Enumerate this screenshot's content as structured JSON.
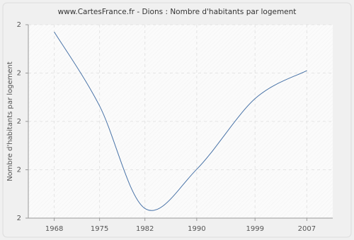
{
  "chart_data": {
    "type": "line",
    "title": "www.CartesFrance.fr - Dions : Nombre d'habitants par logement",
    "y_label": "Nombre d'habitants par logement",
    "x": [
      1968,
      1975,
      1982,
      1990,
      1999,
      2007
    ],
    "series": [
      {
        "name": "Nombre d'habitants par logement",
        "color": "#4a74a8",
        "values": [
          2.185,
          2.032,
          1.82,
          1.901,
          2.047,
          2.105
        ]
      }
    ],
    "xlim": [
      1964,
      2011
    ],
    "xticks": [
      1968,
      1975,
      1982,
      1990,
      1999,
      2007
    ],
    "ylim": [
      1.8,
      2.2
    ],
    "yticks": [
      {
        "value": 1.8,
        "label": "2"
      },
      {
        "value": 1.9,
        "label": "2"
      },
      {
        "value": 2.0,
        "label": "2"
      },
      {
        "value": 2.1,
        "label": "2"
      },
      {
        "value": 2.2,
        "label": "2"
      }
    ],
    "grid": true
  }
}
